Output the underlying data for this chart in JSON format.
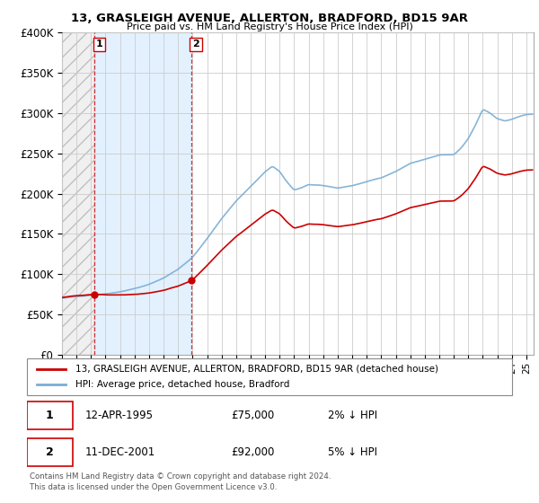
{
  "title1": "13, GRASLEIGH AVENUE, ALLERTON, BRADFORD, BD15 9AR",
  "title2": "Price paid vs. HM Land Registry's House Price Index (HPI)",
  "sale1_year": 1995.25,
  "sale1_price": 75000,
  "sale1_label": "1",
  "sale2_year": 2001.917,
  "sale2_price": 92000,
  "sale2_label": "2",
  "legend_line1": "13, GRASLEIGH AVENUE, ALLERTON, BRADFORD, BD15 9AR (detached house)",
  "legend_line2": "HPI: Average price, detached house, Bradford",
  "date1_str": "12-APR-1995",
  "price1_str": "£75,000",
  "pct1_str": "2% ↓ HPI",
  "date2_str": "11-DEC-2001",
  "price2_str": "£92,000",
  "pct2_str": "5% ↓ HPI",
  "footnote": "Contains HM Land Registry data © Crown copyright and database right 2024.\nThis data is licensed under the Open Government Licence v3.0.",
  "hpi_color": "#7aadd4",
  "price_color": "#cc0000",
  "ownership_fill": "#ddeeff",
  "hatch_color": "#aaaaaa",
  "ylim": [
    0,
    400000
  ],
  "yticks": [
    0,
    50000,
    100000,
    150000,
    200000,
    250000,
    300000,
    350000,
    400000
  ],
  "xmin": 1993.0,
  "xmax": 2025.5
}
